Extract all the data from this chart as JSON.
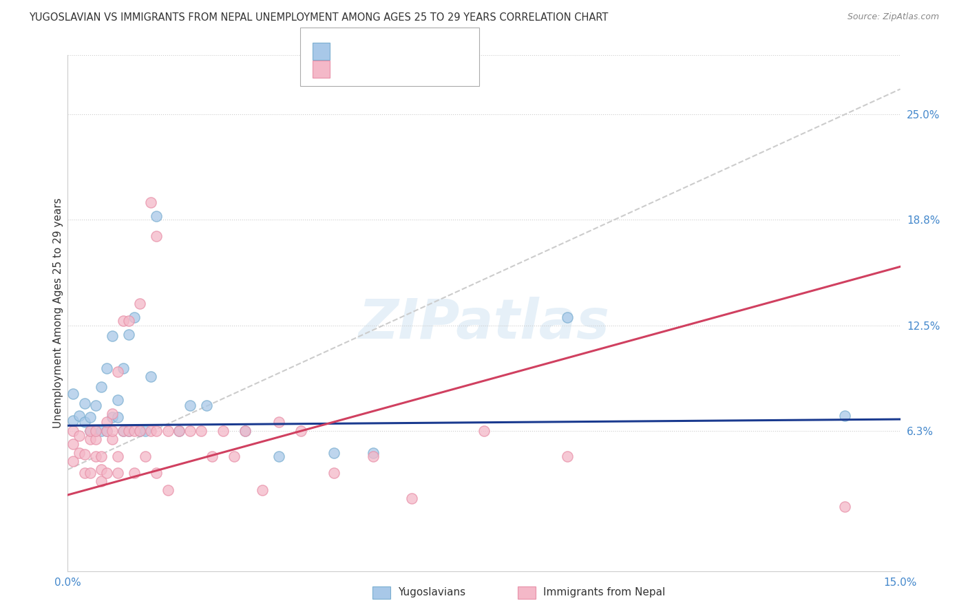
{
  "title": "YUGOSLAVIAN VS IMMIGRANTS FROM NEPAL UNEMPLOYMENT AMONG AGES 25 TO 29 YEARS CORRELATION CHART",
  "source": "Source: ZipAtlas.com",
  "ylabel": "Unemployment Among Ages 25 to 29 years",
  "xlim": [
    0.0,
    0.15
  ],
  "ylim": [
    -0.02,
    0.285
  ],
  "xticks": [
    0.0,
    0.05,
    0.1,
    0.15
  ],
  "xtick_labels": [
    "0.0%",
    "",
    "",
    "15.0%"
  ],
  "ytick_labels_right": [
    "6.3%",
    "12.5%",
    "18.8%",
    "25.0%"
  ],
  "ytick_values_right": [
    0.063,
    0.125,
    0.188,
    0.25
  ],
  "background_color": "#ffffff",
  "watermark": "ZIPatlas",
  "color_blue": "#a8c8e8",
  "color_pink": "#f4b8c8",
  "color_blue_edge": "#7aaed0",
  "color_pink_edge": "#e890a8",
  "color_blue_text": "#3b82c4",
  "line_blue_color": "#1a3a8f",
  "line_pink_color": "#d04060",
  "line_dashed_color": "#cccccc",
  "grid_color": "#cccccc",
  "title_color": "#333333",
  "yugoslavians_x": [
    0.001,
    0.001,
    0.002,
    0.003,
    0.003,
    0.004,
    0.004,
    0.005,
    0.005,
    0.006,
    0.006,
    0.007,
    0.007,
    0.008,
    0.008,
    0.009,
    0.009,
    0.01,
    0.01,
    0.011,
    0.011,
    0.012,
    0.013,
    0.014,
    0.015,
    0.016,
    0.02,
    0.022,
    0.025,
    0.032,
    0.038,
    0.048,
    0.055,
    0.09,
    0.14
  ],
  "yugoslavians_y": [
    0.069,
    0.085,
    0.072,
    0.068,
    0.079,
    0.063,
    0.071,
    0.063,
    0.078,
    0.063,
    0.089,
    0.063,
    0.1,
    0.071,
    0.119,
    0.071,
    0.081,
    0.063,
    0.1,
    0.063,
    0.12,
    0.13,
    0.063,
    0.063,
    0.095,
    0.19,
    0.063,
    0.078,
    0.078,
    0.063,
    0.048,
    0.05,
    0.05,
    0.13,
    0.072
  ],
  "nepal_x": [
    0.001,
    0.001,
    0.001,
    0.002,
    0.002,
    0.003,
    0.003,
    0.004,
    0.004,
    0.004,
    0.005,
    0.005,
    0.005,
    0.006,
    0.006,
    0.006,
    0.007,
    0.007,
    0.007,
    0.008,
    0.008,
    0.008,
    0.009,
    0.009,
    0.009,
    0.01,
    0.01,
    0.011,
    0.011,
    0.012,
    0.012,
    0.013,
    0.013,
    0.014,
    0.015,
    0.015,
    0.016,
    0.016,
    0.016,
    0.018,
    0.018,
    0.02,
    0.022,
    0.024,
    0.026,
    0.028,
    0.03,
    0.032,
    0.035,
    0.038,
    0.042,
    0.048,
    0.055,
    0.062,
    0.075,
    0.09,
    0.14
  ],
  "nepal_y": [
    0.063,
    0.055,
    0.045,
    0.05,
    0.06,
    0.038,
    0.049,
    0.038,
    0.058,
    0.063,
    0.048,
    0.058,
    0.063,
    0.033,
    0.04,
    0.048,
    0.063,
    0.068,
    0.038,
    0.058,
    0.063,
    0.073,
    0.038,
    0.048,
    0.098,
    0.063,
    0.128,
    0.063,
    0.128,
    0.038,
    0.063,
    0.063,
    0.138,
    0.048,
    0.063,
    0.198,
    0.038,
    0.063,
    0.178,
    0.063,
    0.028,
    0.063,
    0.063,
    0.063,
    0.048,
    0.063,
    0.048,
    0.063,
    0.028,
    0.068,
    0.063,
    0.038,
    0.048,
    0.023,
    0.063,
    0.048,
    0.018
  ],
  "line_blue_slope": 0.025,
  "line_blue_intercept": 0.066,
  "line_pink_slope": 0.9,
  "line_pink_intercept": 0.025,
  "dashed_line_x": [
    0.0,
    0.15
  ],
  "dashed_line_y": [
    0.04,
    0.265
  ]
}
